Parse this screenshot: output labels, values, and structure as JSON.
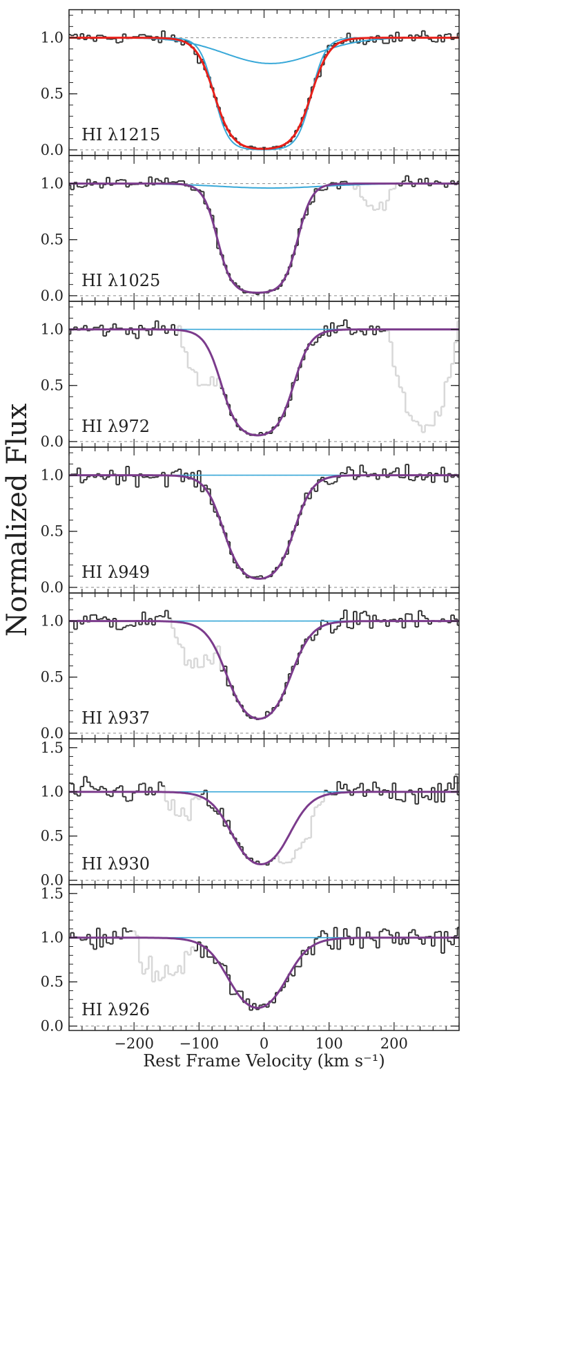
{
  "chart_data": {
    "type": "line",
    "ylabel": "Normalized Flux",
    "xlabel": "Rest Frame Velocity (km s⁻¹)",
    "xlim": [
      -300,
      300
    ],
    "xticks": [
      -200,
      -100,
      0,
      100,
      200
    ],
    "xtick_labels": [
      "−200",
      "−100",
      "0",
      "100",
      "200"
    ],
    "colors": {
      "data": "#333333",
      "masked": "#d8d8d8",
      "fit": "#7b3b8c",
      "fit_red": "#e8201a",
      "component": "#38a8d8",
      "continuum_ref": "#888888"
    },
    "panels": [
      {
        "label": "HI λ1215",
        "ylim": [
          -0.05,
          1.25
        ],
        "yticks": [
          0.0,
          0.5,
          1.0
        ],
        "ytick_labels": [
          "0.0",
          "0.5",
          "1.0"
        ],
        "fit_color": "red",
        "fit": {
          "center": -2,
          "halfwidth": 75,
          "soft": 14,
          "depth": 1.0,
          "floor": 0.0
        },
        "components": [
          {
            "shape": "gauss",
            "center": 10,
            "sigma": 70,
            "depth": 0.23
          },
          {
            "shape": "box",
            "center": -2,
            "halfwidth": 75,
            "soft": 11,
            "depth": 1.0
          }
        ],
        "masked": [],
        "noise": 0.04
      },
      {
        "label": "HI λ1025",
        "ylim": [
          -0.05,
          1.25
        ],
        "yticks": [
          0.0,
          0.5,
          1.0
        ],
        "ytick_labels": [
          "0.0",
          "0.5",
          "1.0"
        ],
        "fit_color": "purple",
        "fit": {
          "center": -10,
          "halfwidth": 62,
          "soft": 11,
          "depth": 0.98,
          "floor": 0.02
        },
        "components": [
          {
            "shape": "gauss",
            "center": 10,
            "sigma": 80,
            "depth": 0.04
          }
        ],
        "masked": [
          {
            "from": 140,
            "to": 200,
            "dip": 0.22
          }
        ],
        "noise": 0.04
      },
      {
        "label": "HI λ972",
        "ylim": [
          -0.05,
          1.25
        ],
        "yticks": [
          0.0,
          0.5,
          1.0
        ],
        "ytick_labels": [
          "0.0",
          "0.5",
          "1.0"
        ],
        "fit_color": "purple",
        "fit": {
          "center": -10,
          "halfwidth": 56,
          "soft": 13,
          "depth": 0.97,
          "floor": 0.03
        },
        "components": [],
        "masked": [
          {
            "from": -130,
            "to": -70,
            "dip": 0.4
          },
          {
            "from": 190,
            "to": 300,
            "dip": 0.9
          }
        ],
        "noise": 0.05
      },
      {
        "label": "HI λ949",
        "ylim": [
          -0.05,
          1.25
        ],
        "yticks": [
          0.0,
          0.5,
          1.0
        ],
        "ytick_labels": [
          "0.0",
          "0.5",
          "1.0"
        ],
        "fit_color": "purple",
        "fit": {
          "center": -8,
          "halfwidth": 55,
          "soft": 14,
          "depth": 0.96,
          "floor": 0.04
        },
        "components": [],
        "masked": [],
        "noise": 0.06
      },
      {
        "label": "HI λ937",
        "ylim": [
          -0.05,
          1.25
        ],
        "yticks": [
          0.0,
          0.5,
          1.0
        ],
        "ytick_labels": [
          "0.0",
          "0.5",
          "1.0"
        ],
        "fit_color": "purple",
        "fit": {
          "center": -8,
          "halfwidth": 50,
          "soft": 16,
          "depth": 0.95,
          "floor": 0.05
        },
        "components": [],
        "masked": [
          {
            "from": -140,
            "to": -70,
            "dip": 0.35
          }
        ],
        "noise": 0.07
      },
      {
        "label": "HI λ930",
        "ylim": [
          -0.05,
          1.6
        ],
        "yticks": [
          0.0,
          0.5,
          1.0,
          1.5
        ],
        "ytick_labels": [
          "0.0",
          "0.5",
          "1.0",
          "1.5"
        ],
        "fit_color": "purple",
        "fit": {
          "center": -5,
          "halfwidth": 45,
          "soft": 17,
          "depth": 0.94,
          "floor": 0.06
        },
        "components": [],
        "masked": [
          {
            "from": -150,
            "to": -100,
            "dip": 0.3
          },
          {
            "from": 20,
            "to": 90,
            "dip": 0.4
          }
        ],
        "noise": 0.1
      },
      {
        "label": "HI λ926",
        "ylim": [
          -0.05,
          1.6
        ],
        "yticks": [
          0.0,
          0.5,
          1.0,
          1.5
        ],
        "ytick_labels": [
          "0.0",
          "0.5",
          "1.0",
          "1.5"
        ],
        "fit_color": "purple",
        "fit": {
          "center": -10,
          "halfwidth": 45,
          "soft": 18,
          "depth": 0.93,
          "floor": 0.07
        },
        "components": [],
        "masked": [
          {
            "from": -200,
            "to": -110,
            "dip": 0.45
          }
        ],
        "noise": 0.12
      }
    ]
  }
}
